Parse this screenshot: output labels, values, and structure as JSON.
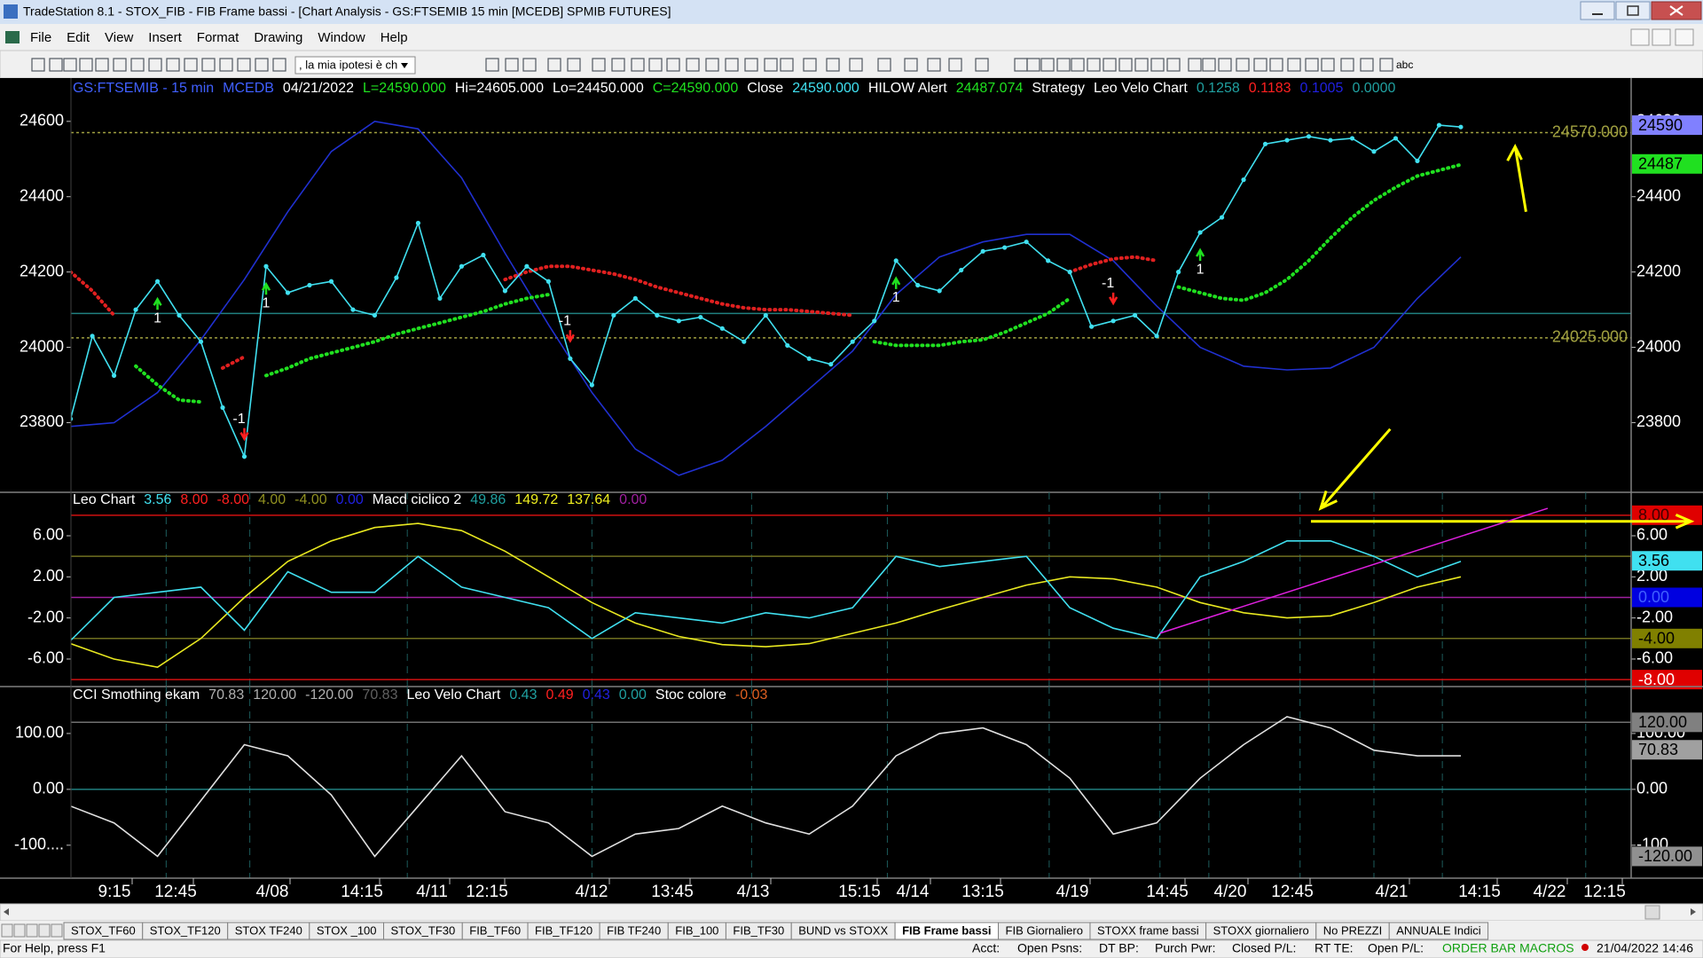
{
  "window": {
    "title": "TradeStation 8.1 - STOX_FIB - FIB Frame bassi - [Chart Analysis - GS:FTSEMIB  15 min  [MCEDB] SPMIB FUTURES]",
    "menu": [
      "File",
      "Edit",
      "View",
      "Insert",
      "Format",
      "Drawing",
      "Window",
      "Help"
    ],
    "toolbar": {
      "dropdown": ", la mia ipotesi è ch",
      "text_tool": "abc"
    }
  },
  "chart_data": [
    {
      "type": "line",
      "header": [
        {
          "text": "GS:FTSEMIB - 15 min",
          "color": "#4060ff"
        },
        {
          "text": "MCEDB",
          "color": "#4060ff"
        },
        {
          "text": "04/21/2022",
          "color": "#ffffff"
        },
        {
          "text": "L=24590.000",
          "color": "#20e020"
        },
        {
          "text": "Hi=24605.000",
          "color": "#ffffff"
        },
        {
          "text": "Lo=24450.000",
          "color": "#ffffff"
        },
        {
          "text": "C=24590.000",
          "color": "#20e020"
        },
        {
          "text": "Close",
          "color": "#ffffff"
        },
        {
          "text": "24590.000",
          "color": "#40e0f0"
        },
        {
          "text": "HILOW Alert",
          "color": "#ffffff"
        },
        {
          "text": "24487.074",
          "color": "#20e020"
        },
        {
          "text": "Strategy",
          "color": "#ffffff"
        },
        {
          "text": "Leo Velo Chart",
          "color": "#ffffff"
        },
        {
          "text": "0.1258",
          "color": "#20a0a0"
        },
        {
          "text": "0.1183",
          "color": "#ff2020"
        },
        {
          "text": "0.1005",
          "color": "#2020e0"
        },
        {
          "text": "0.0000",
          "color": "#20a0a0"
        }
      ],
      "ylim": [
        23615,
        24715
      ],
      "yticks": [
        24600,
        24400,
        24200,
        24000,
        23800
      ],
      "series": [
        {
          "color": "#2030d0",
          "style": "line",
          "values": [
            23790,
            23800,
            23880,
            24020,
            24180,
            24360,
            24520,
            24600,
            24580,
            24450,
            24250,
            24060,
            23880,
            23730,
            23660,
            23700,
            23790,
            23890,
            23990,
            24140,
            24240,
            24280,
            24300,
            24300,
            24230,
            24110,
            24000,
            23950,
            23940,
            23945,
            24000,
            24130,
            24240
          ]
        },
        {
          "color": "#20e020",
          "style": "dots",
          "values": [
            null,
            null,
            null,
            23950,
            23900,
            23860,
            23855,
            null,
            null,
            23925,
            23945,
            23970,
            23985,
            24000,
            24015,
            24035,
            24050,
            24065,
            24080,
            24095,
            24115,
            24130,
            24140,
            null,
            null,
            null,
            null,
            null,
            null,
            null,
            null,
            null,
            null,
            null,
            null,
            null,
            null,
            24015,
            24005,
            24005,
            24005,
            24015,
            24020,
            24040,
            24065,
            24090,
            24130,
            null,
            null,
            null,
            null,
            24160,
            24145,
            24130,
            24125,
            24145,
            24180,
            24230,
            24290,
            24345,
            24390,
            24425,
            24455,
            24470,
            24485
          ]
        },
        {
          "color": "#e02020",
          "style": "dots",
          "values": [
            24200,
            24150,
            24085,
            null,
            null,
            null,
            null,
            23945,
            23975,
            null,
            null,
            null,
            null,
            null,
            null,
            null,
            null,
            null,
            null,
            null,
            24180,
            24200,
            24215,
            24215,
            24205,
            24195,
            24180,
            24160,
            24145,
            24130,
            24115,
            24105,
            24100,
            24100,
            24095,
            24090,
            24085,
            null,
            null,
            null,
            null,
            null,
            null,
            null,
            null,
            null,
            24200,
            24220,
            24235,
            24240,
            24230,
            null,
            null,
            null,
            null,
            null,
            null,
            null,
            null,
            null,
            null,
            null,
            null,
            null,
            null
          ]
        },
        {
          "color": "#40e0f0",
          "style": "line-dots",
          "values": [
            23810,
            24030,
            23925,
            24100,
            24175,
            24085,
            24015,
            23840,
            23710,
            24215,
            24145,
            24165,
            24175,
            24100,
            24085,
            24185,
            24330,
            24130,
            24215,
            24245,
            24150,
            24215,
            24175,
            23970,
            23900,
            24085,
            24130,
            24085,
            24070,
            24080,
            24050,
            24015,
            24085,
            24005,
            23970,
            23955,
            24015,
            24070,
            24230,
            24165,
            24150,
            24205,
            24255,
            24265,
            24280,
            24230,
            24200,
            24055,
            24070,
            24085,
            24030,
            24200,
            24305,
            24345,
            24445,
            24540,
            24550,
            24560,
            24550,
            24555,
            24520,
            24555,
            24495,
            24590,
            24585
          ]
        }
      ],
      "levels": [
        {
          "value": 24570,
          "label": "24570.000",
          "color": "#a0a040"
        },
        {
          "value": 24025,
          "label": "24025.000",
          "color": "#a0a040"
        },
        {
          "value": 24090,
          "color": "#208080"
        }
      ],
      "markers": [
        {
          "value": 24590,
          "label": "24590",
          "color": "#8080ff",
          "text_color": "#000000"
        },
        {
          "value": 24487,
          "label": "24487",
          "color": "#20e020",
          "text_color": "#000000"
        }
      ],
      "signals": [
        {
          "label": "1",
          "bar": 4
        },
        {
          "label": "-1",
          "bar": 8
        },
        {
          "label": "1",
          "bar": 9
        },
        {
          "label": "-1",
          "bar": 23
        },
        {
          "label": "1",
          "bar": 38
        },
        {
          "label": "-1",
          "bar": 48
        },
        {
          "label": "1",
          "bar": 52
        }
      ]
    },
    {
      "type": "line",
      "header": [
        {
          "text": "Leo Chart",
          "color": "#ffffff"
        },
        {
          "text": "3.56",
          "color": "#40e0f0"
        },
        {
          "text": "8.00",
          "color": "#ff2020"
        },
        {
          "text": "-8.00",
          "color": "#ff2020"
        },
        {
          "text": "4.00",
          "color": "#909020"
        },
        {
          "text": "-4.00",
          "color": "#909020"
        },
        {
          "text": "0.00",
          "color": "#2020e0"
        },
        {
          "text": "Macd ciclico 2",
          "color": "#ffffff"
        },
        {
          "text": "49.86",
          "color": "#20a0a0"
        },
        {
          "text": "149.72",
          "color": "#f0f020"
        },
        {
          "text": "137.64",
          "color": "#f0f020"
        },
        {
          "text": "0.00",
          "color": "#a020a0"
        }
      ],
      "ylim": [
        -8.68,
        10.23
      ],
      "yticks": [
        {
          "value": 6,
          "label": "6.00"
        },
        {
          "value": 2,
          "label": "2.00"
        },
        {
          "value": -2,
          "label": "-2.00"
        },
        {
          "value": -6,
          "label": "-6.00"
        }
      ],
      "series": [
        {
          "color": "#e8e820",
          "style": "line",
          "values": [
            -4.5,
            -6,
            -6.8,
            -4,
            0,
            3.5,
            5.5,
            6.8,
            7.2,
            6.5,
            4.5,
            2,
            -0.5,
            -2.5,
            -3.8,
            -4.6,
            -4.8,
            -4.5,
            -3.5,
            -2.5,
            -1.2,
            0,
            1.2,
            2,
            1.8,
            1,
            -0.5,
            -1.5,
            -2,
            -1.8,
            -0.5,
            1,
            2
          ]
        },
        {
          "color": "#40e0f0",
          "style": "line",
          "values": [
            -4.2,
            0,
            0.5,
            1,
            -3.2,
            2.5,
            0.5,
            0.5,
            4,
            1,
            0,
            -1,
            -4,
            -1.5,
            -2,
            -2.5,
            -1.5,
            -2,
            -1,
            4,
            3,
            3.5,
            4,
            -1,
            -3,
            -4,
            2,
            3.5,
            5.5,
            5.5,
            4,
            2,
            3.5
          ]
        }
      ],
      "levels": [
        {
          "value": 8,
          "color": "#d01010"
        },
        {
          "value": 4,
          "color": "#707020"
        },
        {
          "value": 0,
          "color": "#a020a0"
        },
        {
          "value": -4,
          "color": "#707020"
        },
        {
          "value": -8,
          "color": "#d01010"
        }
      ],
      "markers": [
        {
          "value": 8,
          "label": "8.00",
          "color": "#e00000",
          "text_color": "#400000"
        },
        {
          "value": 3.56,
          "label": "3.56",
          "color": "#40e0f0",
          "text_color": "#000000"
        },
        {
          "value": 0,
          "label": "0.00",
          "color": "#0000e0",
          "text_color": "#4060ff"
        },
        {
          "value": -4,
          "label": "-4.00",
          "color": "#808000",
          "text_color": "#000000"
        },
        {
          "value": -8,
          "label": "-8.00",
          "color": "#e00000",
          "text_color": "#ffffff"
        }
      ]
    },
    {
      "type": "line",
      "header": [
        {
          "text": "CCI Smothing ekam",
          "color": "#ffffff"
        },
        {
          "text": "70.83",
          "color": "#b0b0b0"
        },
        {
          "text": "120.00",
          "color": "#b0b0b0"
        },
        {
          "text": "-120.00",
          "color": "#b0b0b0"
        },
        {
          "text": "70.83",
          "color": "#606060"
        },
        {
          "text": "Leo Velo Chart",
          "color": "#ffffff"
        },
        {
          "text": "0.43",
          "color": "#20a0a0"
        },
        {
          "text": "0.49",
          "color": "#ff2020"
        },
        {
          "text": "0.43",
          "color": "#2020e0"
        },
        {
          "text": "0.00",
          "color": "#20a0a0"
        },
        {
          "text": "Stoc colore",
          "color": "#ffffff"
        },
        {
          "text": "-0.03",
          "color": "#e06020"
        }
      ],
      "ylim": [
        -159,
        184
      ],
      "yticks": [
        {
          "value": 100,
          "label": "100.00"
        },
        {
          "value": 0,
          "label": "0.00"
        },
        {
          "value": -100,
          "label": "-100...."
        }
      ],
      "series": [
        {
          "color": "#e0e0e0",
          "style": "line",
          "values": [
            -30,
            -60,
            -120,
            -20,
            80,
            60,
            -10,
            -120,
            -30,
            60,
            -40,
            -60,
            -120,
            -80,
            -70,
            -30,
            -60,
            -80,
            -30,
            60,
            100,
            110,
            80,
            20,
            -80,
            -60,
            20,
            80,
            130,
            110,
            70,
            60,
            60
          ]
        }
      ],
      "levels": [
        {
          "value": 120,
          "color": "#707070"
        },
        {
          "value": 0,
          "color": "#208080"
        }
      ],
      "markers": [
        {
          "value": 120,
          "label": "120.00",
          "color": "#808080",
          "text_color": "#000000"
        },
        {
          "value": 70.83,
          "label": "70.83",
          "color": "#a0a0a0",
          "text_color": "#000000"
        },
        {
          "value": -120,
          "label": "-120.00",
          "color": "#909090",
          "text_color": "#000000"
        }
      ]
    }
  ],
  "time_axis": [
    "9:15",
    "12:45",
    "4/08",
    "14:15",
    "4/11",
    "12:15",
    "4/12",
    "13:45",
    "4/13",
    "15:15",
    "4/14",
    "13:15",
    "4/19",
    "14:45",
    "4/20",
    "12:45",
    "4/21",
    "14:15",
    "4/22",
    "12:15"
  ],
  "tabs": {
    "items": [
      "STOX_TF60",
      "STOX_TF120",
      "STOX TF240",
      "STOX _100",
      "STOX_TF30",
      "FIB_TF60",
      "FIB_TF120",
      "FIB TF240",
      "FIB_100",
      "FIB_TF30",
      "BUND vs STOXX",
      "FIB Frame bassi",
      "FIB Giornaliero",
      "STOXX frame bassi",
      "STOXX giornaliero",
      "No PREZZI",
      "ANNUALE Indici"
    ],
    "active": 11
  },
  "status": {
    "help": "For Help, press F1",
    "fields": [
      "Acct:",
      "Open Psns:",
      "DT BP:",
      "Purch Pwr:",
      "Closed P/L:",
      "RT TE:",
      "Open P/L:"
    ],
    "macros": "ORDER BAR MACROS",
    "clock": "21/04/2022 14:46"
  }
}
